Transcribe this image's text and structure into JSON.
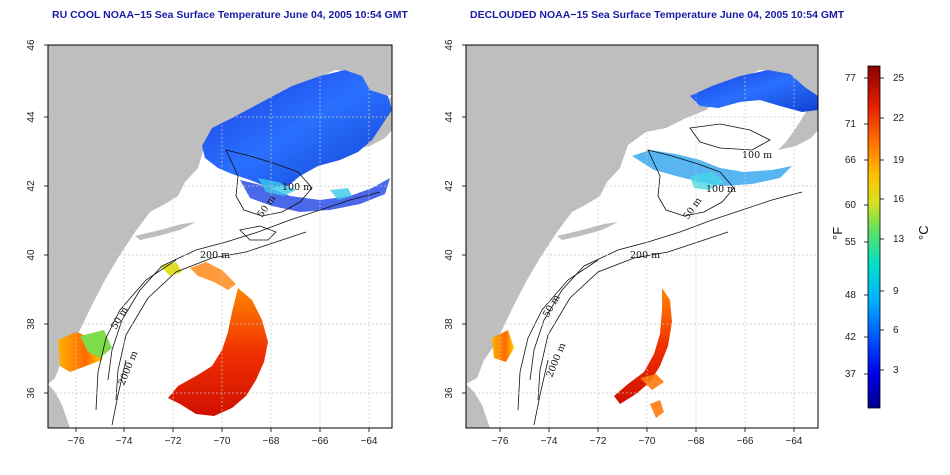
{
  "panels": [
    {
      "title": "RU COOL NOAA−15 Sea Surface Temperature June 04, 2005 10:54 GMT",
      "contours": [
        "100 m",
        "50 m",
        "200 m",
        "50 m",
        "2000 m"
      ]
    },
    {
      "title": "DECLOUDED NOAA−15 Sea Surface Temperature June 04, 2005 10:54 GMT",
      "contours": [
        "100 m",
        "100 m",
        "50 m",
        "200 m",
        "50 m",
        "2000 m"
      ]
    }
  ],
  "axes": {
    "x_ticks": [
      "−76",
      "−74",
      "−72",
      "−70",
      "−68",
      "−66",
      "−64"
    ],
    "y_ticks": [
      "46",
      "44",
      "42",
      "40",
      "38",
      "36"
    ],
    "lon_range": [
      -77,
      -63
    ],
    "lat_range": [
      35,
      46
    ]
  },
  "colorbar": {
    "fahrenheit_ticks": [
      "77",
      "71",
      "66",
      "60",
      "55",
      "48",
      "42",
      "37"
    ],
    "celsius_ticks": [
      "25",
      "22",
      "19",
      "16",
      "13",
      "9",
      "6",
      "3"
    ],
    "fahrenheit_label": "°F",
    "celsius_label": "°C",
    "range_celsius": [
      0,
      26
    ]
  },
  "colors": {
    "land": "#bebebe",
    "grid": "#c8c8c8",
    "title": "#1a1aa6",
    "cold": "#0a2bd8",
    "warm": "#cc1a08"
  }
}
